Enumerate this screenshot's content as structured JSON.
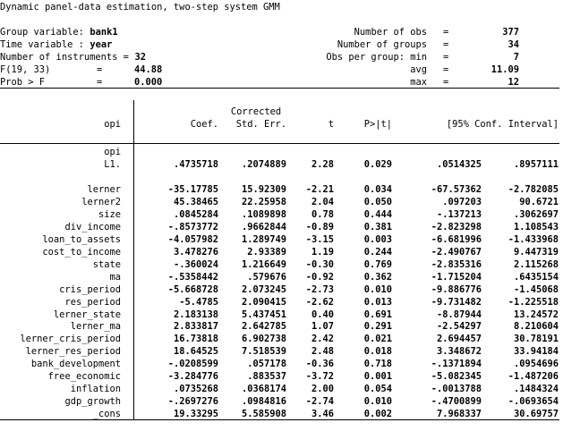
{
  "title": "Dynamic panel-data estimation, two-step system GMM",
  "header_left": [
    {
      "label": "Group variable: ",
      "value": "bank1"
    },
    {
      "label": "Time variable : ",
      "value": "year"
    },
    {
      "label": "Number of instruments = ",
      "value": "32"
    },
    {
      "label": "F(19, 33)",
      "eq": "=",
      "value": "44.88"
    },
    {
      "label": "Prob > F",
      "eq": "=",
      "value": "0.000"
    }
  ],
  "header_right": [
    {
      "label": "Number of obs",
      "eq": "=",
      "value": "377"
    },
    {
      "label": "Number of groups",
      "eq": "=",
      "value": "34"
    },
    {
      "label": "Obs per group: min",
      "eq": "=",
      "value": "7"
    },
    {
      "label": "avg",
      "eq": "=",
      "value": "11.09"
    },
    {
      "label": "max",
      "eq": "=",
      "value": "12"
    }
  ],
  "columns": {
    "dep": "opi",
    "coef": "Coef.",
    "se_top": "Corrected",
    "se": "Std. Err.",
    "t": "t",
    "p": "P>|t|",
    "ci": "[95% Conf. Interval]"
  },
  "lag_group": "opi",
  "rows": [
    {
      "var": "L1.",
      "coef": ".4735718",
      "se": ".2074889",
      "t": "2.28",
      "p": "0.029",
      "lo": ".0514325",
      "hi": ".8957111"
    },
    {
      "var": "lerner",
      "coef": "-35.17785",
      "se": "15.92309",
      "t": "-2.21",
      "p": "0.034",
      "lo": "-67.57362",
      "hi": "-2.782085"
    },
    {
      "var": "lerner2",
      "coef": "45.38465",
      "se": "22.25958",
      "t": "2.04",
      "p": "0.050",
      "lo": ".097203",
      "hi": "90.6721"
    },
    {
      "var": "size",
      "coef": ".0845284",
      "se": ".1089898",
      "t": "0.78",
      "p": "0.444",
      "lo": "-.137213",
      "hi": ".3062697"
    },
    {
      "var": "div_income",
      "coef": "-.8573772",
      "se": ".9662844",
      "t": "-0.89",
      "p": "0.381",
      "lo": "-2.823298",
      "hi": "1.108543"
    },
    {
      "var": "loan_to_assets",
      "coef": "-4.057982",
      "se": "1.289749",
      "t": "-3.15",
      "p": "0.003",
      "lo": "-6.681996",
      "hi": "-1.433968"
    },
    {
      "var": "cost_to_income",
      "coef": "3.478276",
      "se": "2.93389",
      "t": "1.19",
      "p": "0.244",
      "lo": "-2.490767",
      "hi": "9.447319"
    },
    {
      "var": "state",
      "coef": "-.360024",
      "se": "1.216649",
      "t": "-0.30",
      "p": "0.769",
      "lo": "-2.835316",
      "hi": "2.115268"
    },
    {
      "var": "ma",
      "coef": "-.5358442",
      "se": ".579676",
      "t": "-0.92",
      "p": "0.362",
      "lo": "-1.715204",
      "hi": ".6435154"
    },
    {
      "var": "cris_period",
      "coef": "-5.668728",
      "se": "2.073245",
      "t": "-2.73",
      "p": "0.010",
      "lo": "-9.886776",
      "hi": "-1.45068"
    },
    {
      "var": "res_period",
      "coef": "-5.4785",
      "se": "2.090415",
      "t": "-2.62",
      "p": "0.013",
      "lo": "-9.731482",
      "hi": "-1.225518"
    },
    {
      "var": "lerner_state",
      "coef": "2.183138",
      "se": "5.437451",
      "t": "0.40",
      "p": "0.691",
      "lo": "-8.87944",
      "hi": "13.24572"
    },
    {
      "var": "lerner_ma",
      "coef": "2.833817",
      "se": "2.642785",
      "t": "1.07",
      "p": "0.291",
      "lo": "-2.54297",
      "hi": "8.210604"
    },
    {
      "var": "lerner_cris_period",
      "coef": "16.73818",
      "se": "6.902738",
      "t": "2.42",
      "p": "0.021",
      "lo": "2.694457",
      "hi": "30.78191"
    },
    {
      "var": "lerner_res_period",
      "coef": "18.64525",
      "se": "7.518539",
      "t": "2.48",
      "p": "0.018",
      "lo": "3.348672",
      "hi": "33.94184"
    },
    {
      "var": "bank_development",
      "coef": "-.0208599",
      "se": ".057178",
      "t": "-0.36",
      "p": "0.718",
      "lo": "-.1371894",
      "hi": ".0954696"
    },
    {
      "var": "free_economic",
      "coef": "-3.284776",
      "se": ".883537",
      "t": "-3.72",
      "p": "0.001",
      "lo": "-5.082345",
      "hi": "-1.487206"
    },
    {
      "var": "inflation",
      "coef": ".0735268",
      "se": ".0368174",
      "t": "2.00",
      "p": "0.054",
      "lo": "-.0013788",
      "hi": ".1484324"
    },
    {
      "var": "gdp_growth",
      "coef": "-.2697276",
      "se": ".0984816",
      "t": "-2.74",
      "p": "0.010",
      "lo": "-.4700899",
      "hi": "-.0693654"
    },
    {
      "var": "_cons",
      "coef": "19.33295",
      "se": "5.585908",
      "t": "3.46",
      "p": "0.002",
      "lo": "7.968337",
      "hi": "30.69757"
    }
  ]
}
